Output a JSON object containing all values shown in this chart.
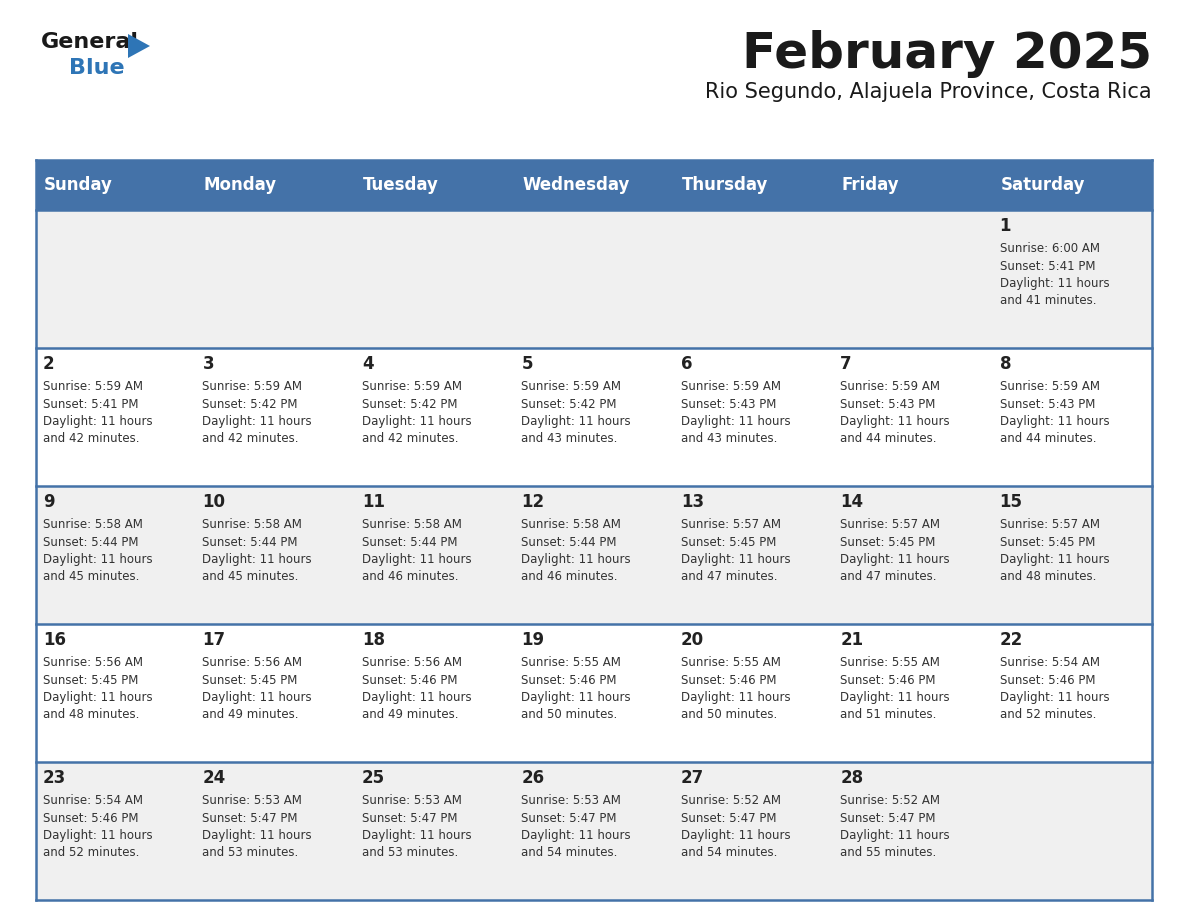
{
  "title": "February 2025",
  "subtitle": "Rio Segundo, Alajuela Province, Costa Rica",
  "header_bg": "#4472a8",
  "header_text": "#ffffff",
  "row_bg_even": "#f0f0f0",
  "row_bg_odd": "#ffffff",
  "separator_color": "#4472a8",
  "day_headers": [
    "Sunday",
    "Monday",
    "Tuesday",
    "Wednesday",
    "Thursday",
    "Friday",
    "Saturday"
  ],
  "days": [
    {
      "day": 1,
      "col": 6,
      "row": 0,
      "sunrise": "6:00 AM",
      "sunset": "5:41 PM",
      "daylight": "11 hours and 41 minutes."
    },
    {
      "day": 2,
      "col": 0,
      "row": 1,
      "sunrise": "5:59 AM",
      "sunset": "5:41 PM",
      "daylight": "11 hours and 42 minutes."
    },
    {
      "day": 3,
      "col": 1,
      "row": 1,
      "sunrise": "5:59 AM",
      "sunset": "5:42 PM",
      "daylight": "11 hours and 42 minutes."
    },
    {
      "day": 4,
      "col": 2,
      "row": 1,
      "sunrise": "5:59 AM",
      "sunset": "5:42 PM",
      "daylight": "11 hours and 42 minutes."
    },
    {
      "day": 5,
      "col": 3,
      "row": 1,
      "sunrise": "5:59 AM",
      "sunset": "5:42 PM",
      "daylight": "11 hours and 43 minutes."
    },
    {
      "day": 6,
      "col": 4,
      "row": 1,
      "sunrise": "5:59 AM",
      "sunset": "5:43 PM",
      "daylight": "11 hours and 43 minutes."
    },
    {
      "day": 7,
      "col": 5,
      "row": 1,
      "sunrise": "5:59 AM",
      "sunset": "5:43 PM",
      "daylight": "11 hours and 44 minutes."
    },
    {
      "day": 8,
      "col": 6,
      "row": 1,
      "sunrise": "5:59 AM",
      "sunset": "5:43 PM",
      "daylight": "11 hours and 44 minutes."
    },
    {
      "day": 9,
      "col": 0,
      "row": 2,
      "sunrise": "5:58 AM",
      "sunset": "5:44 PM",
      "daylight": "11 hours and 45 minutes."
    },
    {
      "day": 10,
      "col": 1,
      "row": 2,
      "sunrise": "5:58 AM",
      "sunset": "5:44 PM",
      "daylight": "11 hours and 45 minutes."
    },
    {
      "day": 11,
      "col": 2,
      "row": 2,
      "sunrise": "5:58 AM",
      "sunset": "5:44 PM",
      "daylight": "11 hours and 46 minutes."
    },
    {
      "day": 12,
      "col": 3,
      "row": 2,
      "sunrise": "5:58 AM",
      "sunset": "5:44 PM",
      "daylight": "11 hours and 46 minutes."
    },
    {
      "day": 13,
      "col": 4,
      "row": 2,
      "sunrise": "5:57 AM",
      "sunset": "5:45 PM",
      "daylight": "11 hours and 47 minutes."
    },
    {
      "day": 14,
      "col": 5,
      "row": 2,
      "sunrise": "5:57 AM",
      "sunset": "5:45 PM",
      "daylight": "11 hours and 47 minutes."
    },
    {
      "day": 15,
      "col": 6,
      "row": 2,
      "sunrise": "5:57 AM",
      "sunset": "5:45 PM",
      "daylight": "11 hours and 48 minutes."
    },
    {
      "day": 16,
      "col": 0,
      "row": 3,
      "sunrise": "5:56 AM",
      "sunset": "5:45 PM",
      "daylight": "11 hours and 48 minutes."
    },
    {
      "day": 17,
      "col": 1,
      "row": 3,
      "sunrise": "5:56 AM",
      "sunset": "5:45 PM",
      "daylight": "11 hours and 49 minutes."
    },
    {
      "day": 18,
      "col": 2,
      "row": 3,
      "sunrise": "5:56 AM",
      "sunset": "5:46 PM",
      "daylight": "11 hours and 49 minutes."
    },
    {
      "day": 19,
      "col": 3,
      "row": 3,
      "sunrise": "5:55 AM",
      "sunset": "5:46 PM",
      "daylight": "11 hours and 50 minutes."
    },
    {
      "day": 20,
      "col": 4,
      "row": 3,
      "sunrise": "5:55 AM",
      "sunset": "5:46 PM",
      "daylight": "11 hours and 50 minutes."
    },
    {
      "day": 21,
      "col": 5,
      "row": 3,
      "sunrise": "5:55 AM",
      "sunset": "5:46 PM",
      "daylight": "11 hours and 51 minutes."
    },
    {
      "day": 22,
      "col": 6,
      "row": 3,
      "sunrise": "5:54 AM",
      "sunset": "5:46 PM",
      "daylight": "11 hours and 52 minutes."
    },
    {
      "day": 23,
      "col": 0,
      "row": 4,
      "sunrise": "5:54 AM",
      "sunset": "5:46 PM",
      "daylight": "11 hours and 52 minutes."
    },
    {
      "day": 24,
      "col": 1,
      "row": 4,
      "sunrise": "5:53 AM",
      "sunset": "5:47 PM",
      "daylight": "11 hours and 53 minutes."
    },
    {
      "day": 25,
      "col": 2,
      "row": 4,
      "sunrise": "5:53 AM",
      "sunset": "5:47 PM",
      "daylight": "11 hours and 53 minutes."
    },
    {
      "day": 26,
      "col": 3,
      "row": 4,
      "sunrise": "5:53 AM",
      "sunset": "5:47 PM",
      "daylight": "11 hours and 54 minutes."
    },
    {
      "day": 27,
      "col": 4,
      "row": 4,
      "sunrise": "5:52 AM",
      "sunset": "5:47 PM",
      "daylight": "11 hours and 54 minutes."
    },
    {
      "day": 28,
      "col": 5,
      "row": 4,
      "sunrise": "5:52 AM",
      "sunset": "5:47 PM",
      "daylight": "11 hours and 55 minutes."
    }
  ],
  "num_rows": 5,
  "num_cols": 7,
  "fig_width": 11.88,
  "fig_height": 9.18,
  "dpi": 100
}
